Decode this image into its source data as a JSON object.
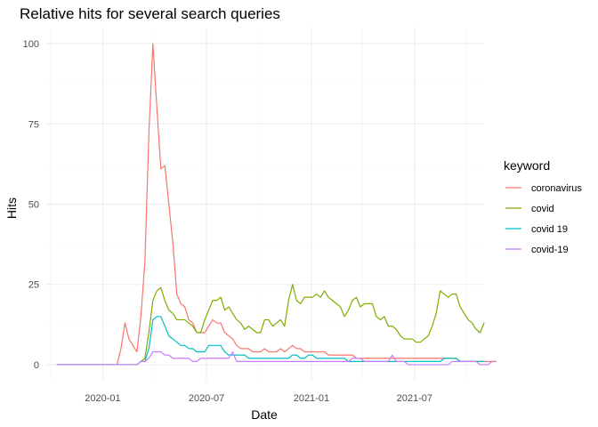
{
  "chart_data": {
    "type": "line",
    "title": "Relative hits for several search queries",
    "xlabel": "Date",
    "ylabel": "Hits",
    "legend_title": "keyword",
    "legend_position": "right",
    "grid": true,
    "x_start_date": "2019-10-13",
    "x_step_days": 7,
    "xlim": [
      "2019-09-24",
      "2021-10-31"
    ],
    "ylim": [
      -5,
      105
    ],
    "x_ticks": [
      {
        "date": "2020-01-01",
        "label": "2020-01"
      },
      {
        "date": "2020-07-01",
        "label": "2020-07"
      },
      {
        "date": "2021-01-01",
        "label": "2021-01"
      },
      {
        "date": "2021-07-01",
        "label": "2021-07"
      }
    ],
    "y_ticks": [
      0,
      25,
      50,
      75,
      100
    ],
    "series": [
      {
        "name": "coronavirus",
        "color": "#F8766D",
        "values": [
          0,
          0,
          0,
          0,
          0,
          0,
          0,
          0,
          0,
          0,
          0,
          0,
          0,
          0,
          0,
          0,
          5,
          13,
          8,
          6,
          4,
          15,
          32,
          72,
          100,
          80,
          61,
          62,
          50,
          38,
          22,
          19,
          18,
          14,
          13,
          10,
          10,
          10,
          12,
          14,
          13,
          13,
          10,
          9,
          8,
          6,
          5,
          5,
          5,
          4,
          4,
          4,
          5,
          4,
          4,
          4,
          5,
          4,
          5,
          6,
          5,
          5,
          4,
          4,
          4,
          4,
          4,
          4,
          3,
          3,
          3,
          3,
          3,
          3,
          3,
          2,
          2,
          2,
          2,
          2,
          2,
          2,
          2,
          2,
          2,
          2,
          2,
          2,
          2,
          2,
          2,
          2,
          2,
          2,
          2,
          2,
          2,
          2,
          2,
          2,
          2,
          1,
          1,
          1,
          1,
          1,
          1,
          1,
          1,
          1,
          1
        ]
      },
      {
        "name": "covid",
        "color": "#7CAE00",
        "values": [
          0,
          0,
          0,
          0,
          0,
          0,
          0,
          0,
          0,
          0,
          0,
          0,
          0,
          0,
          0,
          0,
          0,
          0,
          0,
          0,
          0,
          1,
          2,
          10,
          20,
          23,
          24,
          20,
          17,
          16,
          14,
          14,
          14,
          13,
          12,
          10,
          10,
          14,
          17,
          20,
          20,
          21,
          17,
          18,
          16,
          14,
          13,
          11,
          12,
          11,
          10,
          10,
          14,
          14,
          12,
          13,
          14,
          12,
          20,
          25,
          20,
          19,
          21,
          21,
          21,
          22,
          21,
          23,
          21,
          20,
          19,
          18,
          15,
          17,
          20,
          21,
          18,
          19,
          19,
          19,
          15,
          14,
          15,
          12,
          12,
          11,
          9,
          8,
          8,
          8,
          7,
          7,
          8,
          9,
          12,
          16,
          23,
          22,
          21,
          22,
          22,
          18,
          16,
          14,
          13,
          11,
          10,
          13
        ]
      },
      {
        "name": "covid 19",
        "color": "#00BFC4",
        "values": [
          0,
          0,
          0,
          0,
          0,
          0,
          0,
          0,
          0,
          0,
          0,
          0,
          0,
          0,
          0,
          0,
          0,
          0,
          0,
          0,
          0,
          1,
          1,
          5,
          14,
          15,
          15,
          12,
          9,
          8,
          7,
          6,
          6,
          5,
          5,
          4,
          4,
          4,
          6,
          6,
          6,
          6,
          4,
          3,
          3,
          3,
          3,
          3,
          2,
          2,
          2,
          2,
          2,
          2,
          2,
          2,
          2,
          2,
          2,
          3,
          3,
          2,
          2,
          3,
          3,
          2,
          2,
          2,
          2,
          2,
          2,
          2,
          2,
          1,
          1,
          1,
          1,
          1,
          1,
          1,
          1,
          1,
          1,
          1,
          1,
          1,
          1,
          1,
          1,
          1,
          1,
          1,
          1,
          1,
          1,
          1,
          1,
          2,
          2,
          2,
          2,
          1,
          1,
          1,
          1,
          1,
          1,
          1
        ]
      },
      {
        "name": "covid-19",
        "color": "#C77CFF",
        "values": [
          0,
          0,
          0,
          0,
          0,
          0,
          0,
          0,
          0,
          0,
          0,
          0,
          0,
          0,
          0,
          0,
          0,
          0,
          0,
          0,
          0,
          1,
          1,
          2,
          4,
          4,
          4,
          3,
          3,
          2,
          2,
          2,
          2,
          2,
          1,
          1,
          2,
          2,
          2,
          2,
          2,
          2,
          2,
          2,
          4,
          1,
          1,
          1,
          1,
          1,
          1,
          1,
          1,
          1,
          1,
          1,
          1,
          1,
          1,
          1,
          1,
          1,
          1,
          1,
          1,
          1,
          1,
          1,
          1,
          1,
          1,
          1,
          1,
          1,
          2,
          2,
          2,
          1,
          1,
          1,
          1,
          1,
          1,
          1,
          3,
          1,
          1,
          1,
          0,
          0,
          0,
          0,
          0,
          0,
          0,
          0,
          0,
          0,
          0,
          1,
          1,
          1,
          1,
          1,
          1,
          1,
          0,
          0,
          0,
          1
        ]
      }
    ]
  }
}
